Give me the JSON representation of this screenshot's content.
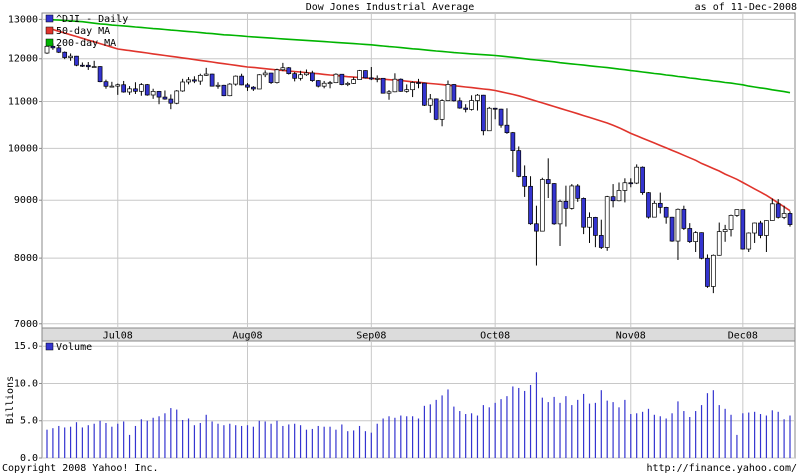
{
  "chart_data": [
    {
      "type": "candlestick",
      "title": "Dow Jones Industrial Average",
      "subtitle": "as of 11-Dec-2008",
      "categories": [
        null,
        null,
        null,
        null,
        null,
        null,
        null,
        null,
        null,
        null,
        null,
        null,
        "Jul08",
        null,
        null,
        null,
        null,
        null,
        null,
        null,
        null,
        null,
        null,
        null,
        null,
        null,
        null,
        null,
        null,
        null,
        null,
        null,
        null,
        null,
        "Aug08",
        null,
        null,
        null,
        null,
        null,
        null,
        null,
        null,
        null,
        null,
        null,
        null,
        null,
        null,
        null,
        null,
        null,
        null,
        null,
        null,
        "Sep08",
        null,
        null,
        null,
        null,
        null,
        null,
        null,
        null,
        null,
        null,
        null,
        null,
        null,
        null,
        null,
        null,
        null,
        null,
        null,
        null,
        "Oct08",
        null,
        null,
        null,
        null,
        null,
        null,
        null,
        null,
        null,
        null,
        null,
        null,
        null,
        null,
        null,
        null,
        null,
        null,
        null,
        null,
        null,
        null,
        "Nov08",
        null,
        null,
        null,
        null,
        null,
        null,
        null,
        null,
        null,
        null,
        null,
        null,
        null,
        null,
        null,
        null,
        null,
        null,
        "Dec08",
        null,
        null,
        null,
        null,
        null,
        null,
        null,
        null
      ],
      "series": [
        {
          "name": "^DJI - Daily",
          "color": "#3434d0",
          "open": [
            12140,
            12307,
            12269,
            12160,
            12029,
            12063,
            11843,
            11842,
            11807,
            11811,
            11453,
            11346,
            11350,
            11382,
            11215,
            11288,
            11231,
            11384,
            11147,
            11229,
            11100,
            11055,
            10962,
            11239,
            11446,
            11496,
            11467,
            11602,
            11632,
            11349,
            11370,
            11131,
            11397,
            11583,
            11378,
            11326,
            11284,
            11615,
            11656,
            11432,
            11734,
            11782,
            11642,
            11532,
            11616,
            11659,
            11479,
            11349,
            11417,
            11430,
            11628,
            11386,
            11413,
            11502,
            11715,
            11543,
            11516,
            11532,
            11188,
            11220,
            11511,
            11231,
            11268,
            11434,
            11421,
            10917,
            11059,
            10609,
            11020,
            11388,
            11016,
            10855,
            10825,
            11022,
            11143,
            10365,
            10851,
            10831,
            10483,
            10325,
            9955,
            9447,
            9258,
            8579,
            8451,
            9387,
            9310,
            8577,
            8979,
            8852,
            9265,
            9033,
            8519,
            8691,
            8378,
            8175,
            9065,
            8990,
            9180,
            9325,
            9319,
            9625,
            9139,
            8695,
            8943,
            8870,
            8694,
            8282,
            8835,
            8497,
            8273,
            8425,
            7997,
            7552,
            8046,
            8443,
            8479,
            8726,
            8829,
            8149,
            8419,
            8592,
            8377,
            8635,
            8934,
            8691,
            8761
          ],
          "high": [
            12330,
            12380,
            12330,
            12180,
            12130,
            12070,
            11910,
            11920,
            11950,
            11820,
            11500,
            11450,
            11410,
            11470,
            11350,
            11440,
            11420,
            11400,
            11290,
            11240,
            11250,
            11160,
            11260,
            11520,
            11560,
            11580,
            11640,
            11780,
            11640,
            11440,
            11380,
            11420,
            11600,
            11640,
            11420,
            11350,
            11630,
            11720,
            11660,
            11760,
            11900,
            11800,
            11680,
            11710,
            11740,
            11710,
            11490,
            11470,
            11470,
            11650,
            11630,
            11450,
            11560,
            11730,
            11720,
            11800,
            11600,
            11540,
            11260,
            11650,
            11530,
            11390,
            11460,
            11520,
            11430,
            11170,
            11070,
            11050,
            11480,
            11400,
            11090,
            10940,
            11140,
            11170,
            11150,
            10880,
            10860,
            10840,
            10850,
            10340,
            10040,
            9660,
            9450,
            8900,
            9420,
            9800,
            9320,
            9010,
            9270,
            9300,
            9300,
            9050,
            8780,
            8700,
            8650,
            9080,
            9300,
            9330,
            9410,
            9410,
            9680,
            9640,
            9150,
            8990,
            9140,
            8880,
            8700,
            8850,
            8900,
            8590,
            8450,
            8430,
            8060,
            8060,
            8600,
            8560,
            8740,
            8830,
            8830,
            8430,
            8600,
            8630,
            8640,
            9030,
            9020,
            8900,
            8800
          ],
          "low": [
            12120,
            12220,
            12140,
            11990,
            11950,
            11820,
            11800,
            11730,
            11790,
            11440,
            11290,
            11330,
            11150,
            11200,
            11150,
            11170,
            11130,
            11130,
            11060,
            10940,
            11040,
            10830,
            10940,
            11220,
            11390,
            11420,
            11380,
            11590,
            11340,
            11290,
            11120,
            11120,
            11360,
            11370,
            11240,
            11240,
            11280,
            11560,
            11400,
            11410,
            11700,
            11620,
            11460,
            11480,
            11590,
            11450,
            11320,
            11300,
            11300,
            11420,
            11370,
            11350,
            11400,
            11500,
            11530,
            11490,
            11440,
            11180,
            11040,
            11210,
            11220,
            11200,
            11100,
            11300,
            10900,
            10750,
            10590,
            10460,
            11010,
            11000,
            10840,
            10760,
            10800,
            10800,
            10270,
            10360,
            10610,
            10430,
            10300,
            9530,
            9430,
            9060,
            8560,
            7880,
            8450,
            9040,
            8560,
            8200,
            8530,
            8830,
            8970,
            8400,
            8250,
            8180,
            8150,
            8120,
            8870,
            8980,
            8960,
            9240,
            9300,
            9100,
            8670,
            8690,
            8760,
            8580,
            8270,
            7970,
            8470,
            8250,
            8100,
            7980,
            7530,
            7450,
            8040,
            8270,
            8360,
            8700,
            8140,
            8100,
            8250,
            8330,
            8100,
            8630,
            8670,
            8660,
            8530
          ],
          "close": [
            12307,
            12269,
            12160,
            12029,
            12063,
            11843,
            11842,
            11807,
            11811,
            11453,
            11346,
            11350,
            11382,
            11215,
            11288,
            11231,
            11384,
            11147,
            11229,
            11100,
            11055,
            10962,
            11239,
            11446,
            11496,
            11467,
            11602,
            11632,
            11349,
            11370,
            11131,
            11397,
            11583,
            11378,
            11326,
            11284,
            11615,
            11656,
            11432,
            11734,
            11782,
            11642,
            11532,
            11616,
            11659,
            11479,
            11349,
            11417,
            11430,
            11628,
            11386,
            11413,
            11502,
            11715,
            11543,
            11516,
            11532,
            11188,
            11220,
            11511,
            11231,
            11268,
            11434,
            11421,
            10917,
            11059,
            10609,
            11020,
            11388,
            11016,
            10855,
            10825,
            11022,
            11143,
            10365,
            10851,
            10831,
            10483,
            10325,
            9955,
            9447,
            9258,
            8579,
            8451,
            9387,
            9310,
            8577,
            8979,
            8852,
            9265,
            9033,
            8519,
            8691,
            8378,
            8175,
            9065,
            8990,
            9180,
            9325,
            9319,
            9625,
            9139,
            8695,
            8943,
            8870,
            8694,
            8282,
            8835,
            8497,
            8273,
            8425,
            7997,
            7552,
            8046,
            8443,
            8479,
            8726,
            8829,
            8149,
            8419,
            8592,
            8377,
            8635,
            8934,
            8691,
            8761,
            8565
          ]
        },
        {
          "name": "50-day MA",
          "color": "#e0342c",
          "values": [
            12780,
            12735,
            12690,
            12645,
            12600,
            12555,
            12510,
            12465,
            12420,
            12375,
            12330,
            12285,
            12240,
            12220,
            12200,
            12180,
            12160,
            12140,
            12120,
            12100,
            12080,
            12060,
            12040,
            12020,
            12000,
            11980,
            11960,
            11940,
            11920,
            11900,
            11880,
            11860,
            11840,
            11820,
            11800,
            11790,
            11775,
            11760,
            11745,
            11730,
            11720,
            11705,
            11690,
            11680,
            11665,
            11650,
            11640,
            11625,
            11610,
            11600,
            11585,
            11570,
            11560,
            11550,
            11540,
            11530,
            11520,
            11510,
            11500,
            11490,
            11480,
            11465,
            11450,
            11440,
            11425,
            11410,
            11400,
            11385,
            11370,
            11360,
            11345,
            11330,
            11315,
            11300,
            11285,
            11270,
            11250,
            11220,
            11190,
            11160,
            11130,
            11090,
            11050,
            11010,
            10970,
            10930,
            10890,
            10850,
            10810,
            10770,
            10730,
            10690,
            10650,
            10610,
            10570,
            10530,
            10480,
            10430,
            10370,
            10310,
            10260,
            10210,
            10160,
            10110,
            10060,
            10010,
            9960,
            9910,
            9860,
            9810,
            9760,
            9700,
            9650,
            9600,
            9550,
            9490,
            9440,
            9390,
            9330,
            9270,
            9210,
            9150,
            9090,
            9020,
            8950,
            8880,
            8810
          ]
        },
        {
          "name": "200-day MA",
          "color": "#00b400",
          "values": [
            13000,
            12990,
            12980,
            12970,
            12960,
            12950,
            12940,
            12920,
            12900,
            12880,
            12870,
            12850,
            12840,
            12830,
            12815,
            12800,
            12790,
            12775,
            12760,
            12750,
            12735,
            12720,
            12710,
            12695,
            12680,
            12670,
            12655,
            12640,
            12630,
            12615,
            12600,
            12590,
            12580,
            12570,
            12555,
            12545,
            12535,
            12525,
            12515,
            12505,
            12495,
            12485,
            12475,
            12465,
            12455,
            12445,
            12435,
            12425,
            12415,
            12405,
            12395,
            12385,
            12375,
            12365,
            12355,
            12345,
            12330,
            12315,
            12300,
            12290,
            12275,
            12260,
            12245,
            12235,
            12220,
            12205,
            12190,
            12180,
            12165,
            12150,
            12140,
            12130,
            12120,
            12110,
            12100,
            12090,
            12080,
            12065,
            12050,
            12035,
            12020,
            12000,
            11985,
            11970,
            11955,
            11940,
            11925,
            11905,
            11890,
            11875,
            11860,
            11845,
            11830,
            11815,
            11800,
            11785,
            11770,
            11750,
            11735,
            11715,
            11700,
            11680,
            11665,
            11645,
            11630,
            11610,
            11595,
            11575,
            11560,
            11540,
            11525,
            11505,
            11490,
            11470,
            11455,
            11435,
            11420,
            11400,
            11380,
            11350,
            11330,
            11310,
            11290,
            11265,
            11245,
            11225,
            11200
          ]
        }
      ],
      "ylim": [
        6940,
        13170
      ],
      "yticks": [
        13000,
        12000,
        11000,
        10000,
        9000,
        8000,
        7000
      ],
      "log_scale": true,
      "grid": true,
      "legend": "upper left"
    },
    {
      "type": "bar",
      "ylabel": "Billions",
      "series": [
        {
          "name": "Volume",
          "color": "#3434d0",
          "values": [
            3.8,
            4.0,
            4.3,
            4.1,
            4.2,
            4.8,
            4.1,
            4.4,
            4.6,
            5.0,
            4.7,
            4.2,
            4.6,
            4.9,
            3.1,
            4.3,
            5.2,
            5.0,
            5.4,
            5.6,
            6.0,
            6.7,
            6.5,
            5.1,
            5.3,
            4.4,
            4.7,
            5.8,
            4.9,
            4.6,
            4.4,
            4.6,
            4.4,
            4.3,
            4.4,
            4.2,
            5.0,
            4.9,
            4.6,
            5.0,
            4.3,
            4.5,
            4.6,
            4.4,
            3.8,
            3.9,
            4.3,
            4.2,
            4.2,
            3.8,
            4.5,
            3.6,
            3.7,
            4.3,
            3.6,
            3.4,
            4.6,
            5.3,
            5.6,
            5.4,
            5.7,
            5.6,
            5.6,
            5.3,
            7.0,
            7.2,
            7.8,
            8.4,
            9.2,
            6.9,
            6.3,
            5.9,
            6.0,
            5.7,
            7.1,
            6.8,
            7.4,
            7.9,
            8.3,
            9.6,
            9.4,
            9.0,
            9.8,
            11.5,
            8.1,
            7.5,
            8.2,
            7.4,
            8.3,
            7.1,
            7.8,
            8.6,
            7.3,
            7.4,
            9.1,
            7.7,
            7.5,
            6.8,
            7.8,
            5.9,
            6.0,
            6.2,
            6.6,
            5.8,
            5.6,
            5.3,
            6.0,
            7.6,
            6.3,
            5.5,
            6.3,
            7.1,
            8.7,
            9.1,
            7.1,
            6.6,
            5.8,
            3.1,
            6.0,
            6.1,
            6.2,
            5.9,
            5.7,
            6.4,
            6.2,
            5.2,
            5.7
          ]
        }
      ],
      "ylim": [
        0,
        15.7
      ],
      "yticks": [
        {
          "value": 0,
          "label": "0.0"
        },
        {
          "value": 5,
          "label": "5.0"
        },
        {
          "value": 10,
          "label": "10.0"
        },
        {
          "value": 15,
          "label": "15.0"
        }
      ],
      "grid": true,
      "legend": "upper left"
    }
  ],
  "footer": {
    "left": "Copyright 2008 Yahoo! Inc.",
    "right": "http://finance.yahoo.com/"
  }
}
